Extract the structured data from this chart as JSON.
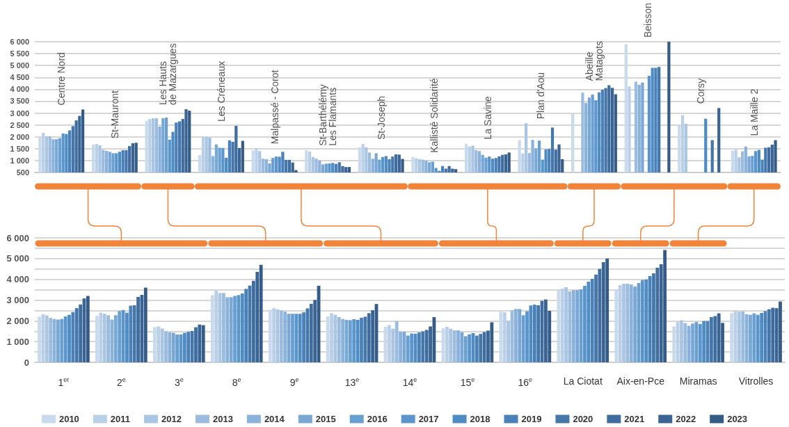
{
  "chart_data": [
    {
      "type": "bar",
      "categories": [
        "Centre Nord",
        "St-Mauront",
        "Les Hauts\nde Mazargues",
        "Les Créneaux",
        "Malpassé - Corot",
        "St-Barthélémy\nLes Flamants",
        "St-Joseph",
        "Kallisté Solidarité",
        "La Savine",
        "Plan d'Aou",
        "Abeille\nMatagots",
        "Beisson",
        "Corsy",
        "La Maille 2"
      ],
      "series": [
        {
          "color": "#c9daec",
          "values": [
            2000,
            1680,
            2680,
            1230,
            1430,
            1440,
            1560,
            1150,
            1710,
            1850,
            2960,
            5900,
            2500,
            1420
          ]
        },
        {
          "color": "#b9d0e8",
          "values": [
            2170,
            1700,
            2750,
            2000,
            1520,
            1380,
            1700,
            1100,
            1590,
            1300,
            null,
            4120,
            2910,
            1460
          ]
        },
        {
          "color": "#aac6e3",
          "values": [
            2020,
            1640,
            2780,
            2000,
            1400,
            1150,
            1560,
            1060,
            1630,
            2570,
            null,
            null,
            2550,
            1140
          ]
        },
        {
          "color": "#9bbcdf",
          "values": [
            2020,
            1450,
            2780,
            1960,
            1080,
            1080,
            1340,
            1040,
            1440,
            1320,
            3860,
            4320,
            null,
            1390
          ]
        },
        {
          "color": "#8ab2db",
          "values": [
            1900,
            1410,
            2430,
            1190,
            1060,
            1000,
            1080,
            1000,
            1400,
            1870,
            3420,
            4190,
            null,
            1590
          ]
        },
        {
          "color": "#79a8d6",
          "values": [
            1900,
            1370,
            2780,
            1680,
            880,
            840,
            1310,
            930,
            1240,
            1510,
            3650,
            4280,
            null,
            1180
          ]
        },
        {
          "color": "#6a9fd2",
          "values": [
            1940,
            1310,
            2810,
            1540,
            1110,
            870,
            1040,
            950,
            1120,
            1840,
            3780,
            null,
            null,
            1200
          ]
        },
        {
          "color": "#5a96cd",
          "values": [
            2140,
            1310,
            1880,
            1530,
            1170,
            880,
            1150,
            690,
            1170,
            1040,
            3540,
            4570,
            null,
            1400
          ]
        },
        {
          "color": "#4f8cc4",
          "values": [
            2120,
            1370,
            2210,
            1120,
            1160,
            900,
            1190,
            570,
            1080,
            1470,
            3870,
            4900,
            2760,
            1450
          ]
        },
        {
          "color": "#4a81b8",
          "values": [
            2270,
            1440,
            2600,
            1850,
            1370,
            860,
            1060,
            770,
            1110,
            1490,
            3980,
            4900,
            null,
            1040
          ]
        },
        {
          "color": "#4577ab",
          "values": [
            2450,
            1440,
            2650,
            1790,
            1030,
            930,
            1170,
            660,
            1180,
            2390,
            4050,
            4940,
            1860,
            1540
          ]
        },
        {
          "color": "#3f6d9f",
          "values": [
            2690,
            1610,
            2750,
            2460,
            1030,
            770,
            1260,
            770,
            1240,
            1460,
            4170,
            null,
            null,
            1560
          ]
        },
        {
          "color": "#3a6493",
          "values": [
            2880,
            1730,
            3160,
            1530,
            920,
            730,
            1250,
            660,
            1260,
            1680,
            4060,
            null,
            3210,
            1670
          ]
        },
        {
          "color": "#355b87",
          "values": [
            3150,
            1750,
            3100,
            1830,
            600,
            730,
            1070,
            640,
            1340,
            1060,
            3790,
            6000,
            null,
            1860
          ]
        }
      ],
      "ylim": [
        500,
        6000
      ],
      "yticks": [
        500,
        {
          "value": 1000,
          "label": "1 000"
        },
        {
          "value": 1500,
          "label": "1 500"
        },
        {
          "value": 2000,
          "label": "2 000"
        },
        {
          "value": 2500,
          "label": "2 500"
        },
        {
          "value": 3000,
          "label": "3 000"
        },
        {
          "value": 3500,
          "label": "3 500"
        },
        {
          "value": 4000,
          "label": "4 000"
        },
        {
          "value": 4500,
          "label": "4 500"
        },
        {
          "value": 5000,
          "label": "5 000"
        },
        {
          "value": 5500,
          "label": "5 500"
        },
        {
          "value": 6000,
          "label": "6 000"
        }
      ],
      "grid": "y"
    },
    {
      "type": "bar",
      "categories": [
        "1$^{er}$",
        "2$^{e}$",
        "3$^{e}$",
        "8$^{e}$",
        "9$^{e}$",
        "13$^{e}$",
        "14$^{e}$",
        "15$^{e}$",
        "16$^{e}$",
        "La Ciotat",
        "Aix-en-Pce",
        "Miramas",
        "Vitrolles"
      ],
      "series": [
        {
          "name": "2010",
          "color": "#c9daec",
          "values": [
            2200,
            2240,
            1700,
            3240,
            2530,
            2210,
            1710,
            1640,
            2440,
            3460,
            3510,
            1730,
            2370
          ]
        },
        {
          "name": "2011",
          "color": "#b9d0e8",
          "values": [
            2320,
            2390,
            1730,
            3460,
            2610,
            2370,
            1790,
            1710,
            2410,
            3550,
            3720,
            1940,
            2500
          ]
        },
        {
          "name": "2012",
          "color": "#aac6e3",
          "values": [
            2260,
            2340,
            1630,
            3340,
            2550,
            2290,
            1620,
            1620,
            2000,
            3620,
            3790,
            2030,
            2440
          ]
        },
        {
          "name": "2013",
          "color": "#9bbcdf",
          "values": [
            2140,
            2270,
            1490,
            3340,
            2500,
            2180,
            1980,
            1540,
            2510,
            3420,
            3790,
            1890,
            2450
          ]
        },
        {
          "name": "2014",
          "color": "#8ab2db",
          "values": [
            2090,
            2060,
            1440,
            3140,
            2440,
            2090,
            1470,
            1540,
            2570,
            3480,
            3750,
            1760,
            2320
          ]
        },
        {
          "name": "2015",
          "color": "#79a8d6",
          "values": [
            2060,
            2270,
            1420,
            3140,
            2340,
            2050,
            1470,
            1450,
            2570,
            3480,
            3650,
            1870,
            2290
          ]
        },
        {
          "name": "2016",
          "color": "#6a9fd2",
          "values": [
            2090,
            2470,
            1340,
            3200,
            2340,
            2030,
            1290,
            1260,
            2270,
            3520,
            3820,
            1940,
            2360
          ]
        },
        {
          "name": "2017",
          "color": "#5a96cd",
          "values": [
            2210,
            2520,
            1340,
            3240,
            2340,
            2080,
            1390,
            1350,
            2460,
            3690,
            3960,
            1850,
            2290
          ]
        },
        {
          "name": "2018",
          "color": "#4f8cc4",
          "values": [
            2290,
            2390,
            1420,
            3320,
            2340,
            2050,
            1380,
            1410,
            2740,
            3890,
            3990,
            1990,
            2380
          ]
        },
        {
          "name": "2019",
          "color": "#4a81b8",
          "values": [
            2420,
            2730,
            1470,
            3540,
            2410,
            2150,
            1440,
            1290,
            2780,
            4020,
            4160,
            1990,
            2470
          ]
        },
        {
          "name": "2020",
          "color": "#4577ab",
          "values": [
            2610,
            2750,
            1510,
            3700,
            2600,
            2200,
            1490,
            1370,
            2750,
            4230,
            4290,
            2180,
            2560
          ]
        },
        {
          "name": "2021",
          "color": "#3f6d9f",
          "values": [
            2790,
            3150,
            1690,
            3930,
            2820,
            2370,
            1560,
            1460,
            2960,
            4500,
            4560,
            2230,
            2630
          ]
        },
        {
          "name": "2022",
          "color": "#3a6493",
          "values": [
            3080,
            3250,
            1820,
            4360,
            3010,
            2510,
            1730,
            1530,
            3030,
            4830,
            4730,
            2360,
            2610
          ]
        },
        {
          "name": "2023",
          "color": "#355b87",
          "values": [
            3200,
            3600,
            1790,
            4700,
            3690,
            2810,
            2180,
            1930,
            2480,
            5000,
            5410,
            1900,
            2930
          ]
        }
      ],
      "ylim": [
        0,
        6000
      ],
      "yticks": [
        0,
        {
          "value": 500,
          "label": null
        },
        {
          "value": 1000,
          "label": "1 000"
        },
        {
          "value": 1500,
          "label": null
        },
        {
          "value": 2000,
          "label": "2 000"
        },
        {
          "value": 2500,
          "label": null
        },
        {
          "value": 3000,
          "label": "3 000"
        },
        {
          "value": 3500,
          "label": null
        },
        {
          "value": 4000,
          "label": "4 000"
        },
        {
          "value": 4500,
          "label": null
        },
        {
          "value": 5000,
          "label": "5 000"
        },
        {
          "value": 5500,
          "label": null
        },
        {
          "value": 6000,
          "label": "6 000"
        }
      ],
      "grid": "y",
      "legend": "bottom"
    }
  ]
}
